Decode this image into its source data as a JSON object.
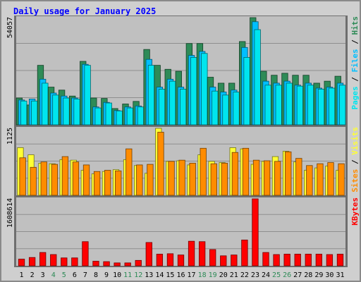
{
  "chart_data": {
    "type": "bar",
    "title": "Daily usage for January 2025",
    "categories": [
      "1",
      "2",
      "3",
      "4",
      "5",
      "6",
      "7",
      "8",
      "9",
      "10",
      "11",
      "12",
      "13",
      "14",
      "15",
      "16",
      "17",
      "18",
      "19",
      "20",
      "21",
      "22",
      "23",
      "24",
      "25",
      "26",
      "27",
      "28",
      "29",
      "30",
      "31"
    ],
    "weekend_days": [
      "4",
      "5",
      "11",
      "12",
      "18",
      "19",
      "25",
      "26"
    ],
    "grid": true,
    "legend": "right",
    "panels": [
      {
        "id": "hits",
        "ymax_label": "54057",
        "ylim": [
          0,
          54057
        ],
        "labels": [
          "Pages",
          "Files",
          "Hits"
        ],
        "series": [
          {
            "name": "Hits",
            "values": [
              13500,
              10000,
              30000,
              19000,
              17500,
              14500,
              32000,
              13500,
              13300,
              8200,
              10500,
              11800,
              38000,
              30000,
              28000,
              27000,
              41000,
              41000,
              24000,
              21000,
              21000,
              42000,
              54057,
              27000,
              25000,
              26000,
              25000,
              25000,
              21000,
              22000,
              24500
            ],
            "color": "#2e8b57"
          },
          {
            "name": "Files",
            "values": [
              12500,
              13000,
              23000,
              16000,
              14500,
              13500,
              30500,
              9000,
              11300,
              7200,
              9000,
              9500,
              33000,
              19000,
              23000,
              19000,
              35000,
              37000,
              19000,
              16500,
              17500,
              39000,
              52000,
              22000,
              21000,
              22000,
              20000,
              21000,
              18500,
              19000,
              21000
            ],
            "color": "#00bfff"
          },
          {
            "name": "Pages",
            "values": [
              12000,
              12000,
              21000,
              15000,
              13500,
              13000,
              30000,
              8500,
              11000,
              7000,
              8500,
              9000,
              30000,
              18000,
              22000,
              18000,
              34000,
              36000,
              17000,
              15000,
              16500,
              34000,
              48000,
              20000,
              20000,
              21000,
              19500,
              20000,
              18000,
              18500,
              20000
            ],
            "color": "#00e5ee"
          }
        ]
      },
      {
        "id": "visits",
        "ymax_label": "1125",
        "ylim": [
          0,
          1125
        ],
        "labels": [
          "Sites",
          "Visits"
        ],
        "series": [
          {
            "name": "Visits",
            "values": [
              800,
              680,
              540,
              530,
              600,
              590,
              420,
              360,
              400,
              430,
              600,
              500,
              370,
              1125,
              570,
              580,
              510,
              680,
              570,
              550,
              800,
              780,
              520,
              570,
              650,
              740,
              560,
              420,
              460,
              490,
              420
            ],
            "color": "#ffff33"
          },
          {
            "name": "Sites",
            "values": [
              630,
              470,
              560,
              520,
              650,
              560,
              510,
              400,
              420,
              410,
              780,
              510,
              520,
              1060,
              570,
              590,
              540,
              790,
              530,
              540,
              720,
              790,
              590,
              580,
              570,
              730,
              620,
              500,
              530,
              550,
              530
            ],
            "color": "#ff8c00"
          }
        ]
      },
      {
        "id": "kbytes",
        "ymax_label": "1608614",
        "ylim": [
          0,
          1608614
        ],
        "labels": [
          "KBytes"
        ],
        "series": [
          {
            "name": "KBytes",
            "values": [
              160000,
              200000,
              320000,
              270000,
              190000,
              190000,
              580000,
              110000,
              100000,
              70000,
              70000,
              130000,
              560000,
              280000,
              290000,
              260000,
              590000,
              580000,
              390000,
              240000,
              260000,
              620000,
              1608614,
              320000,
              270000,
              280000,
              280000,
              280000,
              280000,
              270000,
              280000
            ],
            "color": "#ff0000"
          }
        ]
      }
    ]
  },
  "colors": {
    "title": "#0000ff",
    "weekday_label": "#000000",
    "weekend_label": "#2e8b57",
    "panel_bg": "#c0c0c0",
    "frame_bg": "#c8c8c8",
    "legend_separator": "#000000"
  }
}
